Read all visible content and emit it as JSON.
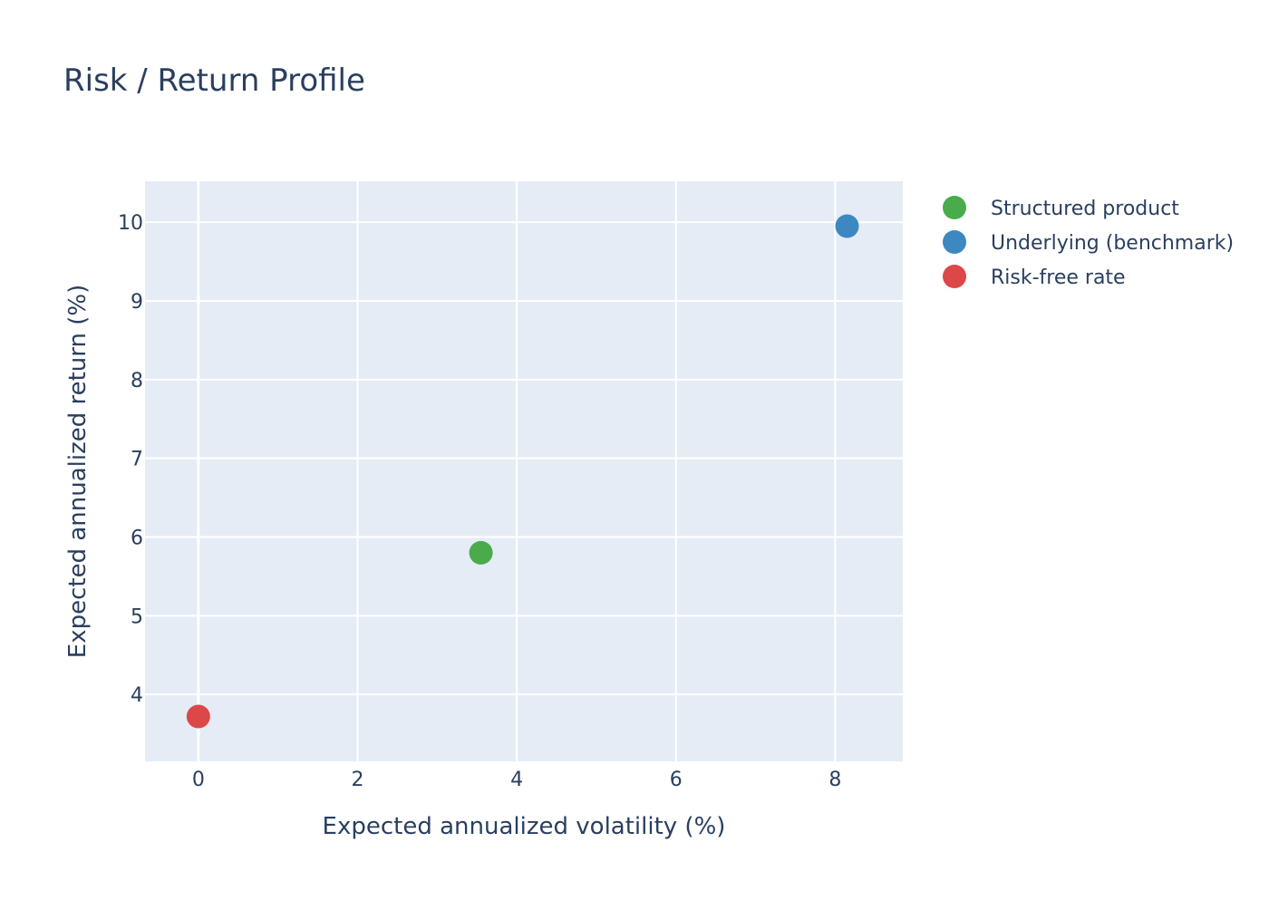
{
  "chart_data": {
    "type": "scatter",
    "title": "Risk / Return Profile",
    "xlabel": "Expected annualized volatility (%)",
    "ylabel": "Expected annualized return (%)",
    "xlim": [
      -0.67,
      8.85
    ],
    "ylim": [
      3.15,
      10.52
    ],
    "x_ticks": [
      0,
      2,
      4,
      6,
      8
    ],
    "y_ticks": [
      4,
      5,
      6,
      7,
      8,
      9,
      10
    ],
    "grid": true,
    "legend_position": "top-right outside",
    "plot_background": "#e5ecf6",
    "series": [
      {
        "name": "Structured product",
        "color": "#4aab4a",
        "x": [
          3.55
        ],
        "y": [
          5.8
        ]
      },
      {
        "name": "Underlying (benchmark)",
        "color": "#3d88c1",
        "x": [
          8.15
        ],
        "y": [
          9.95
        ]
      },
      {
        "name": "Risk-free rate",
        "color": "#dc4848",
        "x": [
          0.0
        ],
        "y": [
          3.72
        ]
      }
    ]
  }
}
